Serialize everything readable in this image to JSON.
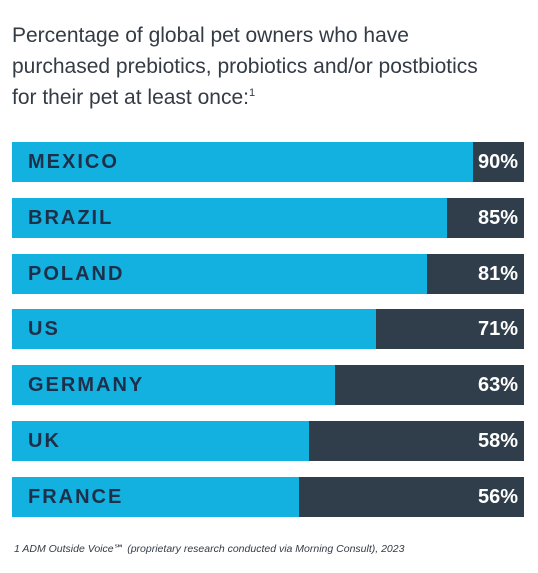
{
  "title_lines": [
    "Percentage of global pet owners who have",
    "purchased prebiotics, probiotics and/or postbiotics",
    "for their pet at least once:"
  ],
  "title_footnote_mark": "1",
  "footnote": "1 ADM Outside Voice℠ (proprietary research conducted via Morning Consult), 2023",
  "colors": {
    "bar_fill": "#13b1e0",
    "bar_track": "#2f3e4a",
    "country_text": "#1e2f49",
    "value_text": "#ffffff"
  },
  "chart_data": {
    "type": "bar",
    "orientation": "horizontal",
    "unit": "%",
    "xlim": [
      0,
      100
    ],
    "grid": false,
    "legend": "none",
    "categories": [
      "MEXICO",
      "BRAZIL",
      "POLAND",
      "US",
      "GERMANY",
      "UK",
      "FRANCE"
    ],
    "values": [
      90,
      85,
      81,
      71,
      63,
      58,
      56
    ],
    "labels": [
      "90%",
      "85%",
      "81%",
      "71%",
      "63%",
      "58%",
      "56%"
    ]
  }
}
